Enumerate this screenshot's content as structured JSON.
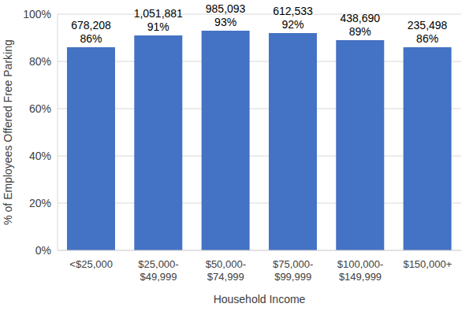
{
  "chart_data": {
    "type": "bar",
    "categories": [
      "<$25,000",
      "$25,000-$49,999",
      "$50,000-$74,999",
      "$75,000-$99,999",
      "$100,000-$149,999",
      "$150,000+"
    ],
    "values": [
      86,
      91,
      93,
      92,
      89,
      86
    ],
    "value_labels": [
      "86%",
      "91%",
      "93%",
      "92%",
      "89%",
      "86%"
    ],
    "count_labels": [
      "678,208",
      "1,051,881",
      "985,093",
      "612,533",
      "438,690",
      "235,498"
    ],
    "color": "#4472c4",
    "xlabel": "Household Income",
    "ylabel": "% of Employees Offered Free Parking",
    "ylim": [
      0,
      100
    ],
    "yticks": [
      {
        "value": 0,
        "label": "0%"
      },
      {
        "value": 20,
        "label": "20%"
      },
      {
        "value": 40,
        "label": "40%"
      },
      {
        "value": 60,
        "label": "60%"
      },
      {
        "value": 80,
        "label": "80%"
      },
      {
        "value": 100,
        "label": "100%"
      }
    ],
    "grid": true,
    "data_labels": true
  }
}
